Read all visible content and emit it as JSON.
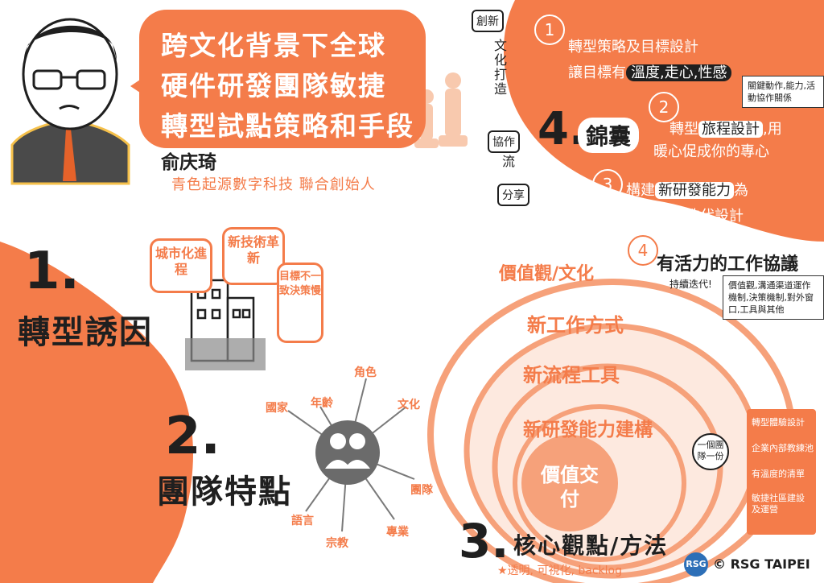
{
  "header": {
    "title_lines": [
      "跨文化背景下全球",
      "硬件研發團隊敏捷",
      "轉型試點策略和手段"
    ],
    "speaker_name": "俞庆琦",
    "speaker_role": "青色起源數字科技  聯合創始人"
  },
  "section1": {
    "number": "1.",
    "title": "轉型誘因",
    "bubbles": [
      "城市化進程",
      "新技術革新",
      "目標不一致決策慢"
    ]
  },
  "section2": {
    "number": "2.",
    "title": "團隊特點",
    "topics": [
      "國家",
      "年齡",
      "角色",
      "文化",
      "團隊",
      "專業",
      "宗教",
      "語言"
    ]
  },
  "section3": {
    "number": "3.",
    "title": "核心觀點/方法",
    "rings": [
      "價值觀/文化",
      "新工作方式",
      "新流程工具",
      "新研發能力建構",
      "價值交付"
    ],
    "footnote": "★透明, 可視化, backlog",
    "side_note": "一個團隊一份",
    "list": [
      "轉型體驗設計",
      "企業內部教練池",
      "有溫度的清單",
      "敏捷社區建設及運營"
    ]
  },
  "section4": {
    "number": "4.",
    "title": "錦囊",
    "vertical_words": [
      "創新",
      "文化打造",
      "協作",
      "流",
      "分享"
    ],
    "items": [
      {
        "num": "1",
        "line1_pre": "轉型策略及目標設計",
        "line2_pre": "讓目標有",
        "line2_hl": "溫度,走心,性感"
      },
      {
        "num": "2",
        "line1_pre": "轉型",
        "line1_hl": "旅程設計",
        "line1_post": ",用",
        "line2_pre": "暖心促成你的專心"
      },
      {
        "num": "3",
        "line1_pre": "構建",
        "line1_hl": "新研發能力",
        "line1_post": "為",
        "line2_pre": "核心的團隊迭代設計"
      },
      {
        "num": "4",
        "line1_pre": "有活力的工作協議"
      }
    ],
    "note_item2": "關鍵動作,能力,活動協作關係",
    "note_item4": "價值觀,溝通渠道運作機制,決策機制,對外窗口,工具與其他",
    "arrow_note": "持續迭代!"
  },
  "footer": {
    "logo": "RSG",
    "copyright": "© RSG TAIPEI"
  }
}
